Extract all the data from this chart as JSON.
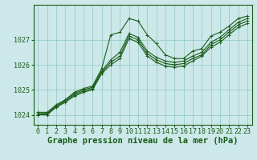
{
  "background_color": "#cce8e8",
  "grid_color": "#99cccc",
  "line_color": "#1a5c1a",
  "marker_color": "#1a5c1a",
  "xlabel": "Graphe pression niveau de la mer (hPa)",
  "xlabel_fontsize": 7.5,
  "tick_fontsize": 6.0,
  "xlim": [
    -0.5,
    23.5
  ],
  "ylim": [
    1023.6,
    1028.4
  ],
  "yticks": [
    1024,
    1025,
    1026,
    1027
  ],
  "xticks": [
    0,
    1,
    2,
    3,
    4,
    5,
    6,
    7,
    8,
    9,
    10,
    11,
    12,
    13,
    14,
    15,
    16,
    17,
    18,
    19,
    20,
    21,
    22,
    23
  ],
  "series": [
    {
      "x": [
        0,
        1,
        2,
        3,
        4,
        5,
        6,
        7,
        8,
        9,
        10,
        11,
        12,
        13,
        14,
        15,
        16,
        17,
        18,
        19,
        20,
        21,
        22,
        23
      ],
      "y": [
        1024.1,
        1024.1,
        1024.4,
        1024.6,
        1024.9,
        1025.05,
        1025.15,
        1025.85,
        1027.2,
        1027.3,
        1027.85,
        1027.75,
        1027.2,
        1026.85,
        1026.4,
        1026.25,
        1026.25,
        1026.55,
        1026.65,
        1027.15,
        1027.3,
        1027.55,
        1027.85,
        1027.95
      ]
    },
    {
      "x": [
        0,
        1,
        2,
        3,
        4,
        5,
        6,
        7,
        8,
        9,
        10,
        11,
        12,
        13,
        14,
        15,
        16,
        17,
        18,
        19,
        20,
        21,
        22,
        23
      ],
      "y": [
        1024.05,
        1024.05,
        1024.35,
        1024.6,
        1024.85,
        1025.0,
        1025.1,
        1025.75,
        1026.2,
        1026.5,
        1027.25,
        1027.1,
        1026.55,
        1026.3,
        1026.15,
        1026.1,
        1026.15,
        1026.35,
        1026.5,
        1026.9,
        1027.1,
        1027.4,
        1027.7,
        1027.85
      ]
    },
    {
      "x": [
        0,
        1,
        2,
        3,
        4,
        5,
        6,
        7,
        8,
        9,
        10,
        11,
        12,
        13,
        14,
        15,
        16,
        17,
        18,
        19,
        20,
        21,
        22,
        23
      ],
      "y": [
        1024.0,
        1024.05,
        1024.3,
        1024.55,
        1024.8,
        1024.95,
        1025.05,
        1025.7,
        1026.1,
        1026.35,
        1027.15,
        1027.0,
        1026.45,
        1026.2,
        1026.05,
        1026.0,
        1026.05,
        1026.25,
        1026.4,
        1026.8,
        1027.0,
        1027.3,
        1027.6,
        1027.75
      ]
    },
    {
      "x": [
        0,
        1,
        2,
        3,
        4,
        5,
        6,
        7,
        8,
        9,
        10,
        11,
        12,
        13,
        14,
        15,
        16,
        17,
        18,
        19,
        20,
        21,
        22,
        23
      ],
      "y": [
        1024.0,
        1024.0,
        1024.3,
        1024.5,
        1024.75,
        1024.9,
        1025.0,
        1025.65,
        1026.0,
        1026.25,
        1027.05,
        1026.9,
        1026.35,
        1026.1,
        1025.95,
        1025.9,
        1025.95,
        1026.15,
        1026.35,
        1026.7,
        1026.9,
        1027.2,
        1027.5,
        1027.65
      ]
    }
  ]
}
